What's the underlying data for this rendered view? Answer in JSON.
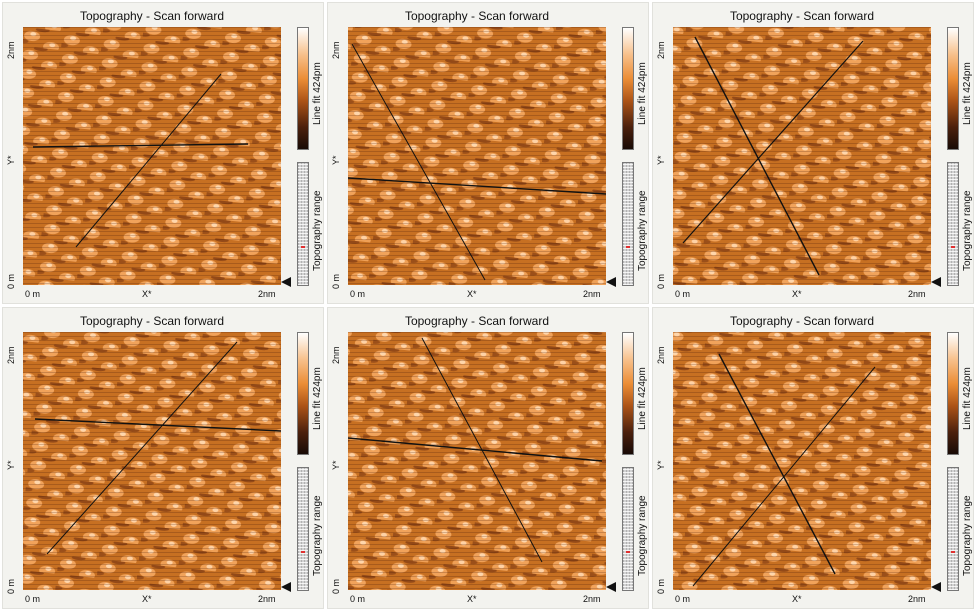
{
  "panels": [
    {
      "title": "Topography - Scan forward",
      "y_axis": {
        "top": "2nm",
        "mid": "Y*",
        "bottom": "0 m"
      },
      "x_axis": {
        "left": "0 m",
        "mid": "X*",
        "right": "2nm"
      },
      "colorbar_label": "Line fit 424pm",
      "range_label": "Topography range"
    },
    {
      "title": "Topography - Scan forward",
      "y_axis": {
        "top": "2nm",
        "mid": "Y*",
        "bottom": "0 m"
      },
      "x_axis": {
        "left": "0 m",
        "mid": "X*",
        "right": "2nm"
      },
      "colorbar_label": "Line fit 424pm",
      "range_label": "Topography range"
    },
    {
      "title": "Topography - Scan forward",
      "y_axis": {
        "top": "2nm",
        "mid": "Y*",
        "bottom": "0 m"
      },
      "x_axis": {
        "left": "0 m",
        "mid": "X*",
        "right": "2nm"
      },
      "colorbar_label": "Line fit 424pm",
      "range_label": "Topography range"
    },
    {
      "title": "Topography - Scan forward",
      "y_axis": {
        "top": "2nm",
        "mid": "Y*",
        "bottom": "0 m"
      },
      "x_axis": {
        "left": "0 m",
        "mid": "X*",
        "right": "2nm"
      },
      "colorbar_label": "Line fit 424pm",
      "range_label": "Topography range"
    },
    {
      "title": "Topography - Scan forward",
      "y_axis": {
        "top": "2nm",
        "mid": "Y*",
        "bottom": "0 m"
      },
      "x_axis": {
        "left": "0 m",
        "mid": "X*",
        "right": "2nm"
      },
      "colorbar_label": "Line fit 424pm",
      "range_label": "Topography range"
    },
    {
      "title": "Topography - Scan forward",
      "y_axis": {
        "top": "2nm",
        "mid": "Y*",
        "bottom": "0 m"
      },
      "x_axis": {
        "left": "0 m",
        "mid": "X*",
        "right": "2nm"
      },
      "colorbar_label": "Line fit 424pm",
      "range_label": "Topography range"
    }
  ],
  "colors": {
    "surface_base": "#c77022",
    "surface_highlight": "#ffd0a0",
    "surface_shadow": "#6a2c0d",
    "line_color": "#111111"
  },
  "icons": {
    "pointer": "triangle-pointer-icon"
  }
}
